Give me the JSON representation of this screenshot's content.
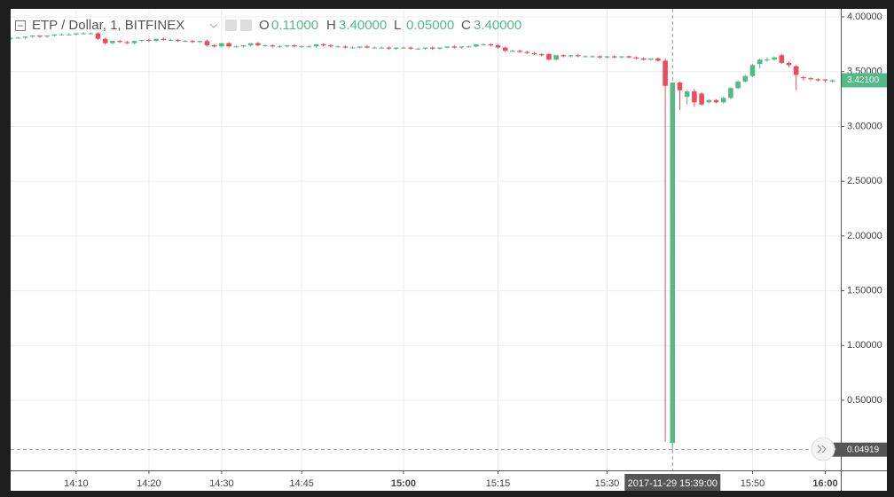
{
  "chart_data": {
    "type": "candlestick",
    "title": "ETP / Dollar, 1, BITFINEX",
    "ohlc_legend": [
      {
        "key": "O",
        "text": "0.11000"
      },
      {
        "key": "H",
        "text": "3.40000"
      },
      {
        "key": "L",
        "text": "0.05000"
      },
      {
        "key": "C",
        "text": "3.40000"
      }
    ],
    "up_color": "#53b987",
    "down_color": "#eb4d5c",
    "grid": true,
    "categories": [
      null,
      null,
      null,
      null,
      null,
      null,
      null,
      null,
      null,
      "14:10",
      null,
      null,
      null,
      null,
      null,
      null,
      null,
      null,
      null,
      "14:20",
      null,
      null,
      null,
      null,
      null,
      null,
      null,
      null,
      null,
      "14:30",
      null,
      null,
      null,
      null,
      null,
      null,
      null,
      null,
      null,
      null,
      "14:45",
      null,
      null,
      null,
      null,
      null,
      null,
      null,
      null,
      null,
      null,
      null,
      null,
      null,
      "15:00",
      null,
      null,
      null,
      null,
      null,
      null,
      null,
      null,
      null,
      null,
      null,
      null,
      "15:15",
      null,
      null,
      null,
      null,
      null,
      null,
      null,
      null,
      null,
      null,
      null,
      null,
      null,
      null,
      "15:30",
      null,
      null,
      null,
      null,
      null,
      null,
      null,
      null,
      "2017-11-29 15:39:00",
      null,
      null,
      null,
      null,
      null,
      null,
      null,
      null,
      null,
      null,
      "15:50",
      null,
      null,
      null,
      null,
      null,
      null,
      null,
      null,
      null,
      "16:00",
      null
    ],
    "open": [
      3.8,
      3.81,
      3.81,
      3.82,
      3.83,
      3.82,
      3.83,
      3.84,
      3.84,
      3.84,
      3.85,
      3.85,
      3.85,
      3.8,
      3.76,
      3.78,
      3.77,
      3.76,
      3.78,
      3.79,
      3.78,
      3.8,
      3.79,
      3.79,
      3.78,
      3.78,
      3.77,
      3.78,
      3.74,
      3.73,
      3.76,
      3.73,
      3.73,
      3.74,
      3.76,
      3.74,
      3.74,
      3.73,
      3.73,
      3.74,
      3.73,
      3.73,
      3.73,
      3.75,
      3.74,
      3.73,
      3.73,
      3.72,
      3.72,
      3.73,
      3.72,
      3.72,
      3.72,
      3.71,
      3.72,
      3.72,
      3.71,
      3.71,
      3.72,
      3.71,
      3.72,
      3.73,
      3.72,
      3.73,
      3.73,
      3.75,
      3.75,
      3.74,
      3.72,
      3.69,
      3.69,
      3.68,
      3.67,
      3.66,
      3.66,
      3.61,
      3.65,
      3.64,
      3.65,
      3.64,
      3.64,
      3.64,
      3.63,
      3.64,
      3.63,
      3.64,
      3.63,
      3.62,
      3.61,
      3.62,
      3.6,
      0.11,
      3.4,
      3.27,
      3.32,
      3.3,
      3.22,
      3.24,
      3.22,
      3.26,
      3.35,
      3.41,
      3.46,
      3.57,
      3.61,
      3.61,
      3.65,
      3.58,
      3.55,
      3.45,
      3.44,
      3.43,
      3.43,
      3.41
    ],
    "high": [
      3.81,
      3.82,
      3.82,
      3.83,
      3.83,
      3.83,
      3.84,
      3.85,
      3.85,
      3.85,
      3.86,
      3.86,
      3.86,
      3.81,
      3.78,
      3.79,
      3.78,
      3.78,
      3.79,
      3.8,
      3.8,
      3.81,
      3.8,
      3.8,
      3.79,
      3.79,
      3.78,
      3.79,
      3.75,
      3.76,
      3.77,
      3.74,
      3.74,
      3.76,
      3.77,
      3.75,
      3.75,
      3.74,
      3.74,
      3.75,
      3.74,
      3.74,
      3.75,
      3.76,
      3.75,
      3.74,
      3.74,
      3.73,
      3.73,
      3.74,
      3.73,
      3.73,
      3.73,
      3.72,
      3.73,
      3.73,
      3.72,
      3.72,
      3.73,
      3.72,
      3.73,
      3.74,
      3.73,
      3.74,
      3.75,
      3.76,
      3.76,
      3.75,
      3.73,
      3.7,
      3.7,
      3.69,
      3.68,
      3.67,
      3.67,
      3.65,
      3.66,
      3.65,
      3.66,
      3.65,
      3.65,
      3.65,
      3.64,
      3.65,
      3.64,
      3.65,
      3.64,
      3.63,
      3.62,
      3.63,
      3.62,
      3.4,
      3.41,
      3.33,
      3.34,
      3.31,
      3.25,
      3.25,
      3.27,
      3.36,
      3.42,
      3.47,
      3.57,
      3.62,
      3.63,
      3.64,
      3.66,
      3.59,
      3.56,
      3.46,
      3.45,
      3.44,
      3.43,
      3.43
    ],
    "low": [
      3.79,
      3.8,
      3.8,
      3.81,
      3.81,
      3.81,
      3.82,
      3.83,
      3.83,
      3.83,
      3.84,
      3.84,
      3.79,
      3.75,
      3.75,
      3.76,
      3.75,
      3.75,
      3.77,
      3.77,
      3.77,
      3.78,
      3.78,
      3.77,
      3.77,
      3.76,
      3.76,
      3.73,
      3.72,
      3.72,
      3.72,
      3.72,
      3.72,
      3.73,
      3.73,
      3.73,
      3.72,
      3.72,
      3.72,
      3.72,
      3.72,
      3.72,
      3.72,
      3.73,
      3.72,
      3.72,
      3.71,
      3.71,
      3.71,
      3.71,
      3.71,
      3.71,
      3.7,
      3.7,
      3.71,
      3.7,
      3.7,
      3.7,
      3.7,
      3.7,
      3.71,
      3.71,
      3.71,
      3.72,
      3.72,
      3.74,
      3.73,
      3.71,
      3.68,
      3.68,
      3.67,
      3.66,
      3.65,
      3.64,
      3.6,
      3.6,
      3.63,
      3.63,
      3.63,
      3.63,
      3.63,
      3.62,
      3.62,
      3.62,
      3.62,
      3.62,
      3.61,
      3.6,
      3.6,
      3.59,
      0.12,
      0.05,
      3.15,
      3.2,
      3.18,
      3.19,
      3.21,
      3.21,
      3.21,
      3.25,
      3.34,
      3.4,
      3.45,
      3.53,
      3.59,
      3.6,
      3.57,
      3.54,
      3.33,
      3.42,
      3.42,
      3.41,
      3.4,
      3.4
    ],
    "close": [
      3.81,
      3.81,
      3.82,
      3.83,
      3.82,
      3.83,
      3.84,
      3.84,
      3.84,
      3.85,
      3.85,
      3.85,
      3.8,
      3.76,
      3.78,
      3.77,
      3.76,
      3.78,
      3.79,
      3.78,
      3.8,
      3.79,
      3.79,
      3.78,
      3.78,
      3.77,
      3.78,
      3.74,
      3.73,
      3.76,
      3.73,
      3.73,
      3.74,
      3.76,
      3.74,
      3.74,
      3.73,
      3.73,
      3.74,
      3.73,
      3.73,
      3.73,
      3.75,
      3.74,
      3.73,
      3.73,
      3.72,
      3.72,
      3.73,
      3.72,
      3.72,
      3.72,
      3.71,
      3.72,
      3.72,
      3.71,
      3.71,
      3.72,
      3.71,
      3.72,
      3.73,
      3.72,
      3.73,
      3.73,
      3.75,
      3.75,
      3.74,
      3.72,
      3.69,
      3.69,
      3.68,
      3.67,
      3.66,
      3.65,
      3.61,
      3.65,
      3.64,
      3.65,
      3.64,
      3.64,
      3.64,
      3.63,
      3.64,
      3.63,
      3.64,
      3.63,
      3.62,
      3.61,
      3.62,
      3.6,
      3.37,
      3.4,
      3.33,
      3.32,
      3.22,
      3.2,
      3.24,
      3.22,
      3.26,
      3.35,
      3.41,
      3.46,
      3.56,
      3.61,
      3.61,
      3.63,
      3.58,
      3.56,
      3.47,
      3.44,
      3.43,
      3.42,
      3.42,
      3.421
    ],
    "ylim": [
      -0.14,
      4.073
    ],
    "yticks": [
      {
        "value": 0.5,
        "label": "0.50000"
      },
      {
        "value": 1.0,
        "label": "1.00000"
      },
      {
        "value": 1.5,
        "label": "1.50000"
      },
      {
        "value": 2.0,
        "label": "2.00000"
      },
      {
        "value": 2.5,
        "label": "2.50000"
      },
      {
        "value": 3.0,
        "label": "3.00000"
      },
      {
        "value": 3.5,
        "label": "3.50000"
      },
      {
        "value": 4.0,
        "label": "4.00000"
      }
    ],
    "last_price": {
      "value": 3.421,
      "label": "3.42100"
    },
    "crosshair_price": {
      "value": 0.04919,
      "label": "0.04919"
    }
  }
}
